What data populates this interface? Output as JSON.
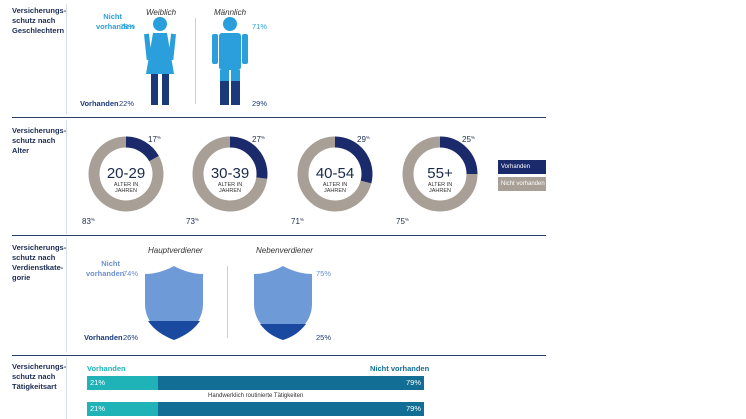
{
  "sections": {
    "gender": {
      "title": "Versicherungs-\nschutz nach\nGeschlechtern"
    },
    "age": {
      "title": "Versicherungs-\nschutz nach\nAlter"
    },
    "earner": {
      "title": "Versicherungs-\nschutz nach\nVerdienstkate-\ngorie"
    },
    "activity": {
      "title": "Versicherungs-\nschutz nach\nTätigkeitsart"
    }
  },
  "gender": {
    "female_label": "Weiblich",
    "male_label": "Männlich",
    "nicht_label": "Nicht\nvorhanden",
    "vorhanden_label": "Vorhanden",
    "female_nicht": "78%",
    "female_vorh": "22%",
    "male_nicht": "71%",
    "male_vorh": "29%"
  },
  "age_legend": {
    "vorhanden": "Vorhanden",
    "nicht": "Nicht vorhanden"
  },
  "earner": {
    "haupt_label": "Hauptverdiener",
    "neben_label": "Nebenverdiener",
    "nicht_label": "Nicht\nvorhanden",
    "vorhanden_label": "Vorhanden",
    "haupt_nicht": "74%",
    "haupt_vorh": "26%",
    "neben_nicht": "75%",
    "neben_vorh": "25%"
  },
  "activity": {
    "vorhanden_header": "Vorhanden",
    "nicht_header": "Nicht vorhanden",
    "row1_a": "21%",
    "row1_b": "79%",
    "row1_caption": "Handwerklich routinierte Tätigkeiten",
    "row2_a": "21%",
    "row2_b": "79%"
  },
  "colors": {
    "navy": "#1b2a6b",
    "grey": "#a89f96",
    "lightblue": "#2a9fdc",
    "shield": "#6f9ad8",
    "teal": "#1fb3b8",
    "petrol": "#126e94"
  },
  "chart_data": [
    {
      "type": "pie",
      "title": "Versicherungsschutz nach Alter",
      "legend": [
        "Vorhanden",
        "Nicht vorhanden"
      ],
      "donuts": [
        {
          "label": "20-29",
          "sub": "ALTER IN\nJAHREN",
          "vorhanden": 17,
          "nicht": 83,
          "vorh_text": "17",
          "nicht_text": "83"
        },
        {
          "label": "30-39",
          "sub": "ALTER IN\nJAHREN",
          "vorhanden": 27,
          "nicht": 73,
          "vorh_text": "27",
          "nicht_text": "73"
        },
        {
          "label": "40-54",
          "sub": "ALTER IN\nJAHREN",
          "vorhanden": 29,
          "nicht": 71,
          "vorh_text": "29",
          "nicht_text": "71"
        },
        {
          "label": "55+",
          "sub": "ALTER IN\nJAHREN",
          "vorhanden": 25,
          "nicht": 75,
          "vorh_text": "25",
          "nicht_text": "75"
        }
      ],
      "percent_symbol": "%"
    },
    {
      "type": "bar",
      "title": "Versicherungsschutz nach Tätigkeitsart",
      "categories": [
        "",
        "Handwerklich routinierte Tätigkeiten"
      ],
      "series": [
        {
          "name": "Vorhanden",
          "values": [
            21,
            21
          ]
        },
        {
          "name": "Nicht vorhanden",
          "values": [
            79,
            79
          ]
        }
      ]
    }
  ]
}
